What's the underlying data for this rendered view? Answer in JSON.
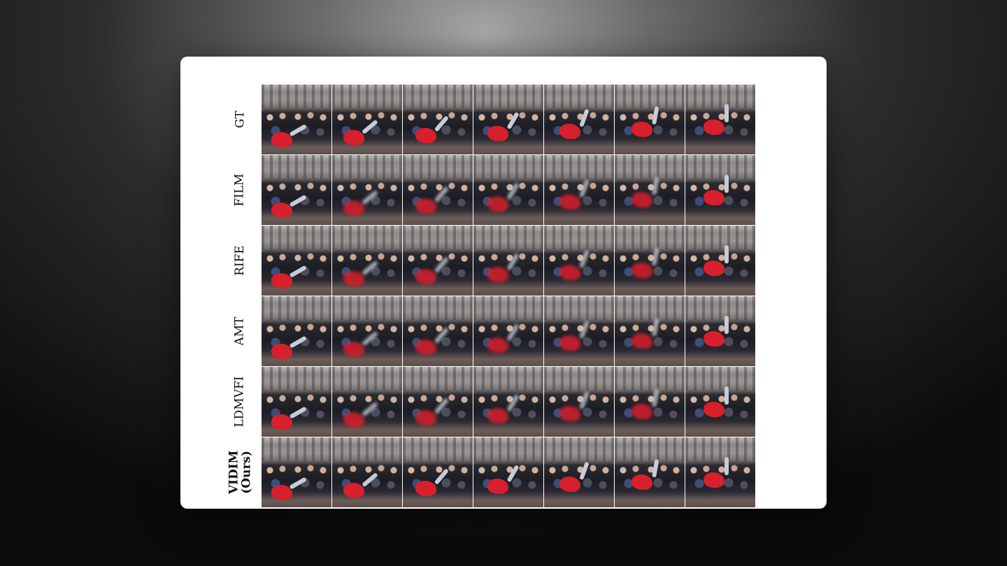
{
  "figure": {
    "rows": [
      {
        "label": "GT",
        "bold": false,
        "blurry": false
      },
      {
        "label": "FILM",
        "bold": false,
        "blurry": true
      },
      {
        "label": "RIFE",
        "bold": false,
        "blurry": true
      },
      {
        "label": "AMT",
        "bold": false,
        "blurry": true
      },
      {
        "label": "LDMVFI",
        "bold": false,
        "blurry": true
      },
      {
        "label": "VIDIM\n(Ours)",
        "bold": true,
        "blurry": false
      }
    ],
    "columns": 7
  }
}
